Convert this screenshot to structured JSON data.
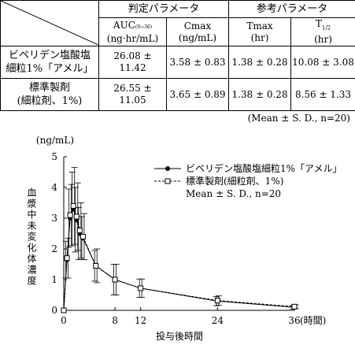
{
  "table": {
    "group_headers": [
      "判定パラメータ",
      "参考パラメータ"
    ],
    "columns": [
      {
        "name": "AUC",
        "sub": "(0→36)",
        "unit": "(ng·hr/mL)"
      },
      {
        "name": "Cmax",
        "sub": "",
        "unit": "(ng/mL)"
      },
      {
        "name": "Tmax",
        "sub": "",
        "unit": "(hr)"
      },
      {
        "name": "T",
        "sub": "1/2",
        "unit": "(hr)"
      }
    ],
    "rows": [
      {
        "label_line1": "ビペリデン塩酸塩",
        "label_line2": "細粒1%「アメル」",
        "values": [
          "26.08 ± 11.42",
          "3.58 ± 0.83",
          "1.38 ± 0.28",
          "10.08 ± 3.08"
        ]
      },
      {
        "label_line1": "標準製剤",
        "label_line2": "(細粒剤、1%)",
        "values": [
          "26.55 ± 11.05",
          "3.65 ± 0.89",
          "1.38 ± 0.28",
          "8.56 ± 1.33"
        ]
      }
    ],
    "footnote": "(Mean ± S. D., n=20)"
  },
  "chart_data": {
    "type": "line",
    "ylabel_unit": "(ng/mL)",
    "ylabel": "血漿中未変化体濃度",
    "xlabel": "投与後時間",
    "x_unit": "(時間)",
    "x_ticks": [
      0,
      8,
      12,
      24,
      36
    ],
    "y_ticks": [
      0,
      1,
      2,
      3,
      4,
      5
    ],
    "xlim": [
      0,
      36
    ],
    "ylim": [
      0,
      5
    ],
    "legend_note": "Mean ± S. D., n=20",
    "series": [
      {
        "name": "ビペリデン塩酸塩細粒1%「アメル」",
        "marker": "filled-circle",
        "line": "solid",
        "x": [
          0,
          0.5,
          1,
          1.5,
          2,
          2.5,
          3,
          5,
          8,
          12,
          24,
          36
        ],
        "y": [
          0,
          1.65,
          3.0,
          3.3,
          2.95,
          2.5,
          2.35,
          1.45,
          1.0,
          0.72,
          0.3,
          0.1
        ],
        "sd": [
          0,
          0.6,
          0.95,
          1.2,
          1.05,
          0.85,
          0.7,
          0.5,
          0.5,
          0.3,
          0.15,
          0.06
        ]
      },
      {
        "name": "標準製剤(細粒剤、1%)",
        "marker": "open-square",
        "line": "dashed",
        "x": [
          0,
          0.5,
          1,
          1.5,
          2,
          2.5,
          3,
          5,
          8,
          12,
          24,
          36
        ],
        "y": [
          0,
          1.7,
          3.1,
          3.4,
          3.05,
          2.6,
          2.4,
          1.45,
          1.0,
          0.72,
          0.32,
          0.12
        ],
        "sd": [
          0,
          0.65,
          1.0,
          1.25,
          1.1,
          0.9,
          0.75,
          0.55,
          0.5,
          0.3,
          0.15,
          0.06
        ]
      }
    ]
  }
}
